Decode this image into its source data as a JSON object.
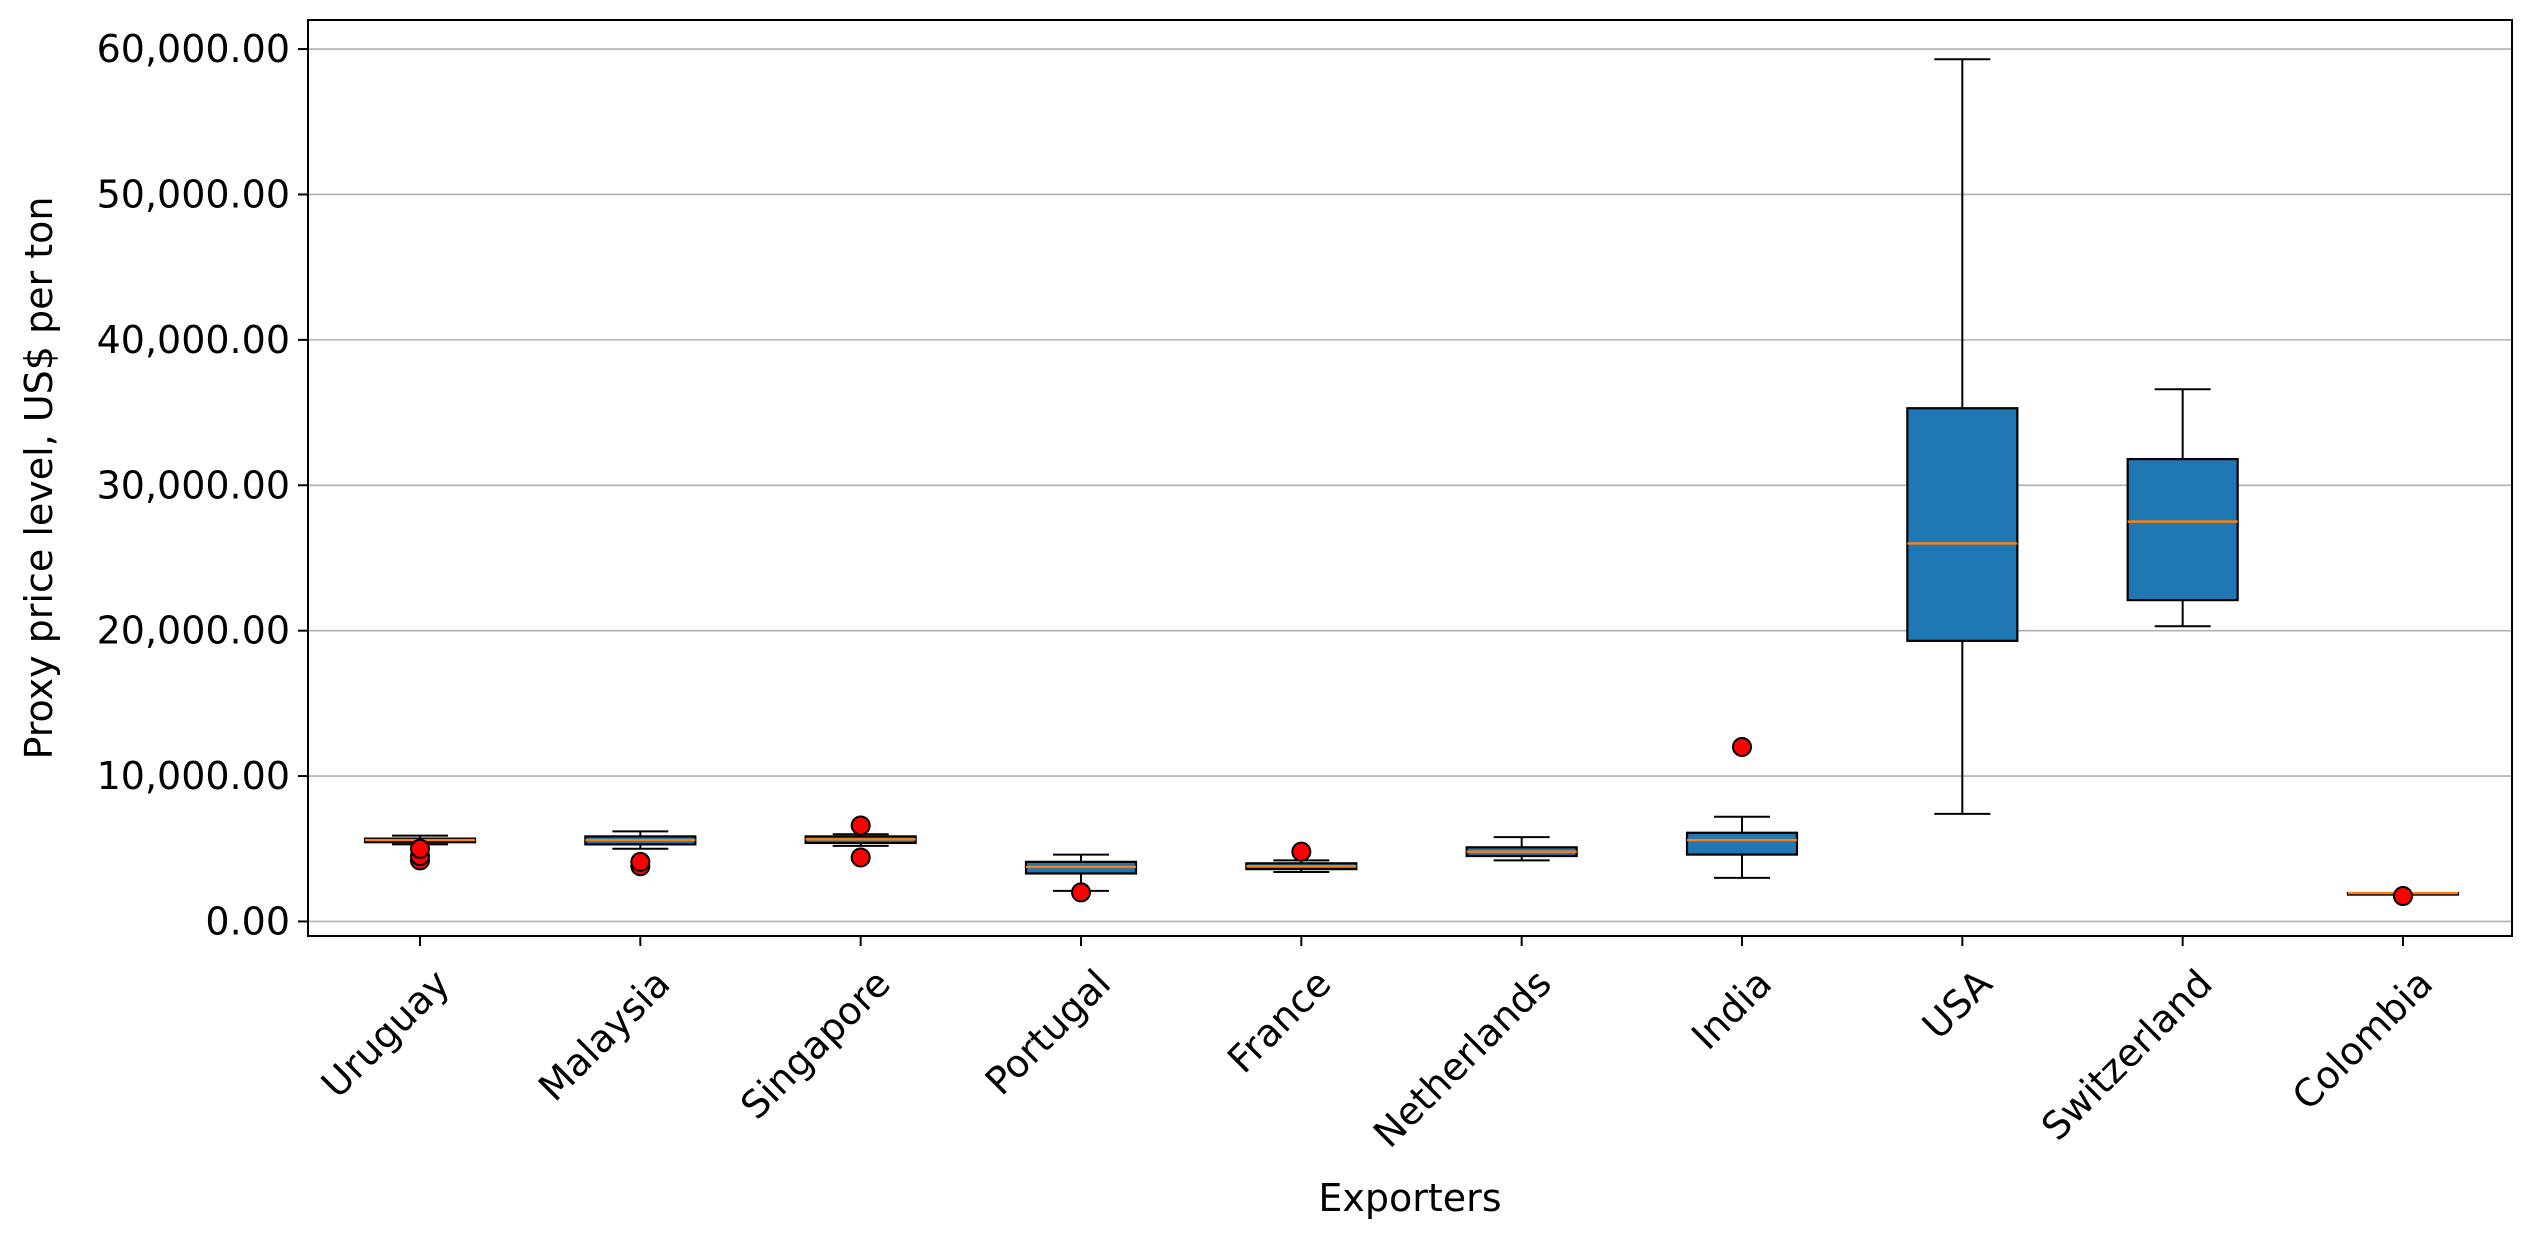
{
  "chart_data": {
    "type": "box",
    "title": "",
    "xlabel": "Exporters",
    "ylabel": "Proxy price level, US$ per ton",
    "ylim": [
      -1000,
      62000
    ],
    "yticks": [
      0,
      10000,
      20000,
      30000,
      40000,
      50000,
      60000
    ],
    "ytick_labels": [
      "0.00",
      "10,000.00",
      "20,000.00",
      "30,000.00",
      "40,000.00",
      "50,000.00",
      "60,000.00"
    ],
    "grid": "y",
    "colors": {
      "box_fill": "#1f77b4",
      "median": "#ff7f0e",
      "outlier_fill": "#ff0000",
      "grid": "#b0b0b0"
    },
    "categories": [
      "Uruguay",
      "Malaysia",
      "Singapore",
      "Portugal",
      "France",
      "Netherlands",
      "India",
      "USA",
      "Switzerland",
      "Colombia"
    ],
    "boxes": [
      {
        "name": "Uruguay",
        "whisker_low": 5300,
        "q1": 5450,
        "median": 5600,
        "q3": 5700,
        "whisker_high": 5900,
        "outliers": [
          4200,
          4500,
          5000
        ]
      },
      {
        "name": "Malaysia",
        "whisker_low": 5000,
        "q1": 5300,
        "median": 5600,
        "q3": 5850,
        "whisker_high": 6200,
        "outliers": [
          3800,
          4100
        ]
      },
      {
        "name": "Singapore",
        "whisker_low": 5200,
        "q1": 5400,
        "median": 5650,
        "q3": 5850,
        "whisker_high": 6000,
        "outliers": [
          4400,
          6600
        ]
      },
      {
        "name": "Portugal",
        "whisker_low": 2100,
        "q1": 3300,
        "median": 3750,
        "q3": 4100,
        "whisker_high": 4600,
        "outliers": [
          2000
        ]
      },
      {
        "name": "France",
        "whisker_low": 3400,
        "q1": 3600,
        "median": 3800,
        "q3": 4000,
        "whisker_high": 4200,
        "outliers": [
          4800
        ]
      },
      {
        "name": "Netherlands",
        "whisker_low": 4200,
        "q1": 4500,
        "median": 4800,
        "q3": 5100,
        "whisker_high": 5800,
        "outliers": []
      },
      {
        "name": "India",
        "whisker_low": 3000,
        "q1": 4600,
        "median": 5600,
        "q3": 6100,
        "whisker_high": 7200,
        "outliers": [
          12000
        ]
      },
      {
        "name": "USA",
        "whisker_low": 7400,
        "q1": 19300,
        "median": 26000,
        "q3": 35300,
        "whisker_high": 59300,
        "outliers": []
      },
      {
        "name": "Switzerland",
        "whisker_low": 20300,
        "q1": 22100,
        "median": 27500,
        "q3": 31800,
        "whisker_high": 36600,
        "outliers": []
      },
      {
        "name": "Colombia",
        "whisker_low": 1950,
        "q1": 1950,
        "median": 1950,
        "q3": 1950,
        "whisker_high": 1950,
        "outliers": [
          1750
        ]
      }
    ]
  }
}
